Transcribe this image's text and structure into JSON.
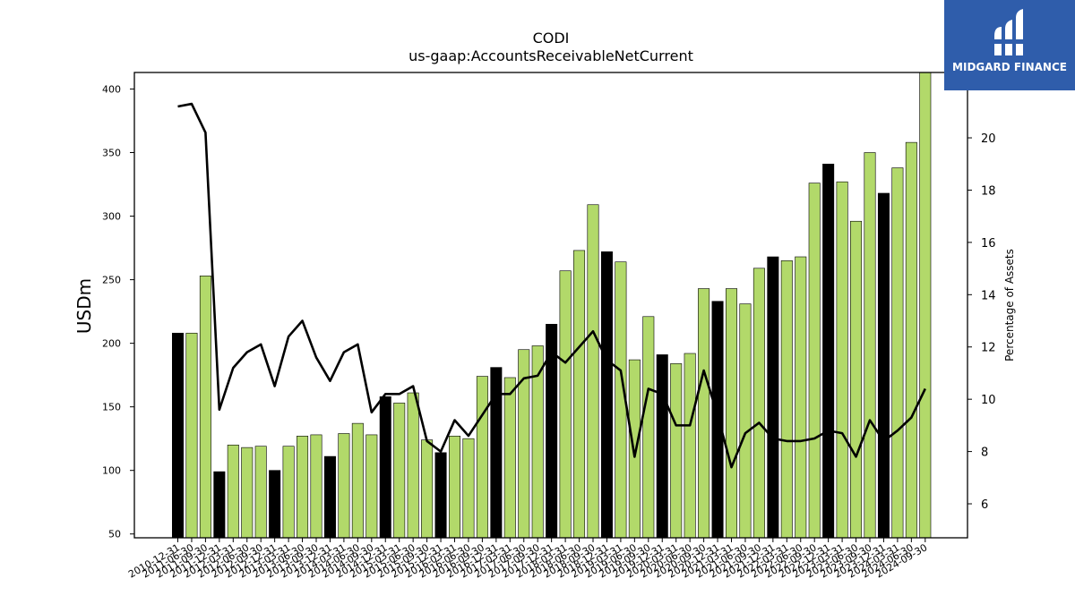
{
  "chart_data": {
    "type": "bar",
    "title": "CODI",
    "subtitle": "us-gaap:AccountsReceivableNetCurrent",
    "ylabel": "USDm",
    "y2label": "Percentage of Assets",
    "ylim": [
      47,
      413
    ],
    "y2lim": [
      4.7,
      22.5
    ],
    "yticks": [
      50,
      100,
      150,
      200,
      250,
      300,
      350,
      400
    ],
    "y2ticks": [
      6,
      8,
      10,
      12,
      14,
      16,
      18,
      20
    ],
    "categories": [
      "2010-12-31",
      "2011-06-30",
      "2011-09-30",
      "2011-12-31",
      "2012-03-31",
      "2012-06-30",
      "2012-09-30",
      "2012-12-31",
      "2013-03-31",
      "2013-06-30",
      "2013-09-30",
      "2013-12-31",
      "2014-03-31",
      "2014-06-30",
      "2014-09-30",
      "2014-12-31",
      "2015-03-31",
      "2015-06-30",
      "2015-09-30",
      "2015-12-31",
      "2016-03-31",
      "2016-06-30",
      "2016-09-30",
      "2016-12-31",
      "2017-03-31",
      "2017-06-30",
      "2017-09-30",
      "2017-12-31",
      "2018-03-31",
      "2018-06-30",
      "2018-09-30",
      "2018-12-31",
      "2019-03-31",
      "2019-06-30",
      "2019-09-30",
      "2019-12-31",
      "2020-03-31",
      "2020-06-30",
      "2020-09-30",
      "2020-12-31",
      "2021-03-31",
      "2021-06-30",
      "2021-09-30",
      "2021-12-31",
      "2022-03-31",
      "2022-06-30",
      "2022-09-30",
      "2022-12-31",
      "2023-03-31",
      "2023-06-30",
      "2023-09-30",
      "2023-12-31",
      "2024-03-31",
      "2024-06-30",
      "2024-09-30"
    ],
    "series": [
      {
        "kind": "bar",
        "values": [
          208,
          208,
          253,
          99,
          120,
          118,
          119,
          100,
          119,
          127,
          128,
          111,
          129,
          137,
          128,
          158,
          153,
          161,
          124,
          114,
          127,
          125,
          174,
          181,
          173,
          195,
          198,
          215,
          257,
          273,
          309,
          272,
          264,
          187,
          221,
          191,
          184,
          192,
          243,
          233,
          243,
          231,
          259,
          268,
          265,
          268,
          326,
          341,
          327,
          296,
          350,
          318,
          338,
          358,
          413
        ],
        "year_end": [
          true,
          false,
          false,
          true,
          false,
          false,
          false,
          true,
          false,
          false,
          false,
          true,
          false,
          false,
          false,
          true,
          false,
          false,
          false,
          true,
          false,
          false,
          false,
          true,
          false,
          false,
          false,
          true,
          false,
          false,
          false,
          true,
          false,
          false,
          false,
          true,
          false,
          false,
          false,
          true,
          false,
          false,
          false,
          true,
          false,
          false,
          false,
          true,
          false,
          false,
          false,
          true,
          false,
          false,
          false
        ]
      },
      {
        "kind": "line",
        "axis": "right",
        "values": [
          21.2,
          21.3,
          20.2,
          9.6,
          11.2,
          11.8,
          12.1,
          10.5,
          12.4,
          13.0,
          11.6,
          10.7,
          11.8,
          12.1,
          9.5,
          10.2,
          10.2,
          10.5,
          8.4,
          8.0,
          9.2,
          8.6,
          9.4,
          10.2,
          10.2,
          10.8,
          10.9,
          11.8,
          11.4,
          12.0,
          12.6,
          11.5,
          11.1,
          7.8,
          10.4,
          10.2,
          9.0,
          9.0,
          11.1,
          9.4,
          7.4,
          8.7,
          9.1,
          8.5,
          8.4,
          8.4,
          8.5,
          8.8,
          8.7,
          7.8,
          9.2,
          8.4,
          8.8,
          9.3,
          10.4
        ]
      }
    ],
    "colors": {
      "bar_regular": "#b2d96a",
      "bar_year_end": "#000000",
      "line": "#000000"
    }
  },
  "logo": {
    "text": "MIDGARD FINANCE",
    "background": "#2f5dab"
  }
}
